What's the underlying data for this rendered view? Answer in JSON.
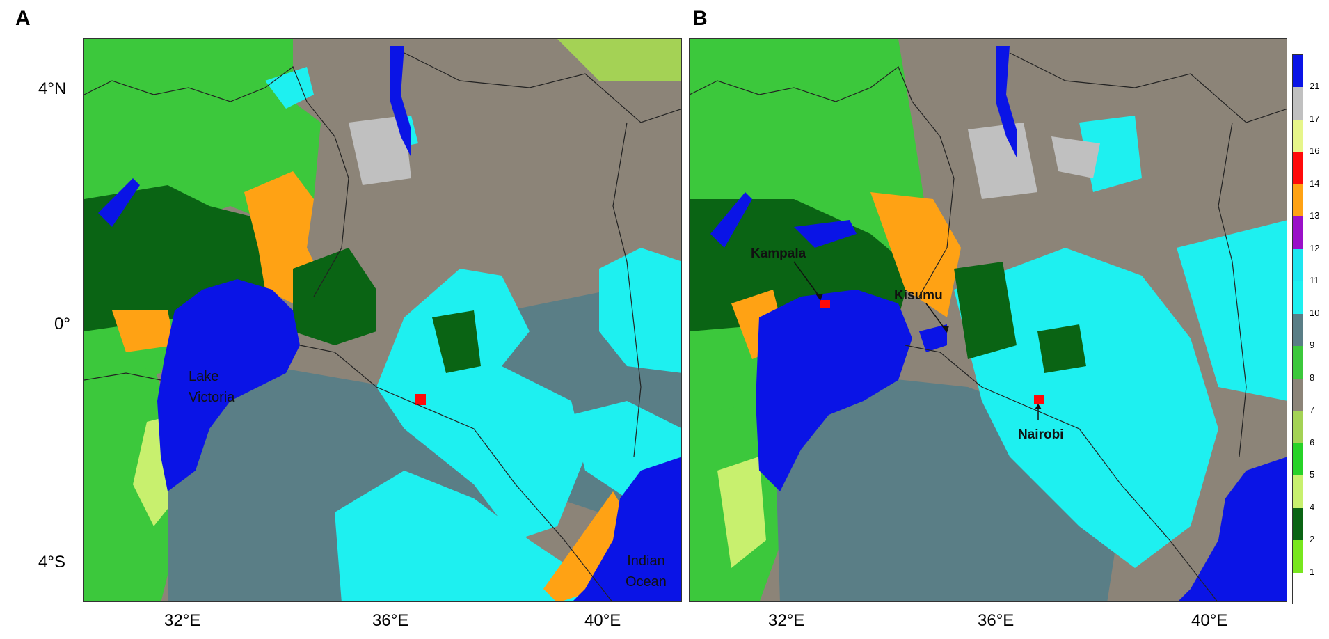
{
  "panels": [
    {
      "letter": "A",
      "labels": {
        "lake": "Lake\nVictoria",
        "ocean": "Indian\nOcean"
      }
    },
    {
      "letter": "B",
      "labels": {
        "kampala": "Kampala",
        "kisumu": "Kisumu",
        "nairobi": "Nairobi"
      }
    }
  ],
  "axes": {
    "y_ticks": [
      "4°N",
      "0°",
      "4°S"
    ],
    "x_ticks": [
      "32°E",
      "36°E",
      "40°E"
    ]
  },
  "colorbar": {
    "labels": [
      "21",
      "17",
      "16",
      "14",
      "13",
      "12",
      "11",
      "10",
      "9",
      "8",
      "7",
      "6",
      "5",
      "4",
      "2",
      "1"
    ],
    "colors": [
      "#0a14e6",
      "#c0c0c0",
      "#e6f58a",
      "#ff0a0a",
      "#ffa214",
      "#9a10c8",
      "#1ee6f0",
      "#1ef0f0",
      "#5a7e86",
      "#3cc83c",
      "#8c8478",
      "#a4d255",
      "#28d228",
      "#c8f06e",
      "#0a6414",
      "#78e61e",
      "#ffffff"
    ]
  },
  "landcover_colors": {
    "water": "#0a14e6",
    "shrub": "#8c8478",
    "grass_light": "#3cc83c",
    "forest": "#0a6414",
    "cyan": "#1ef0f0",
    "teal": "#5a7e86",
    "crop": "#ffa214",
    "urban": "#ff0a0a",
    "barren": "#c0c0c0",
    "savanna": "#a4d255"
  }
}
